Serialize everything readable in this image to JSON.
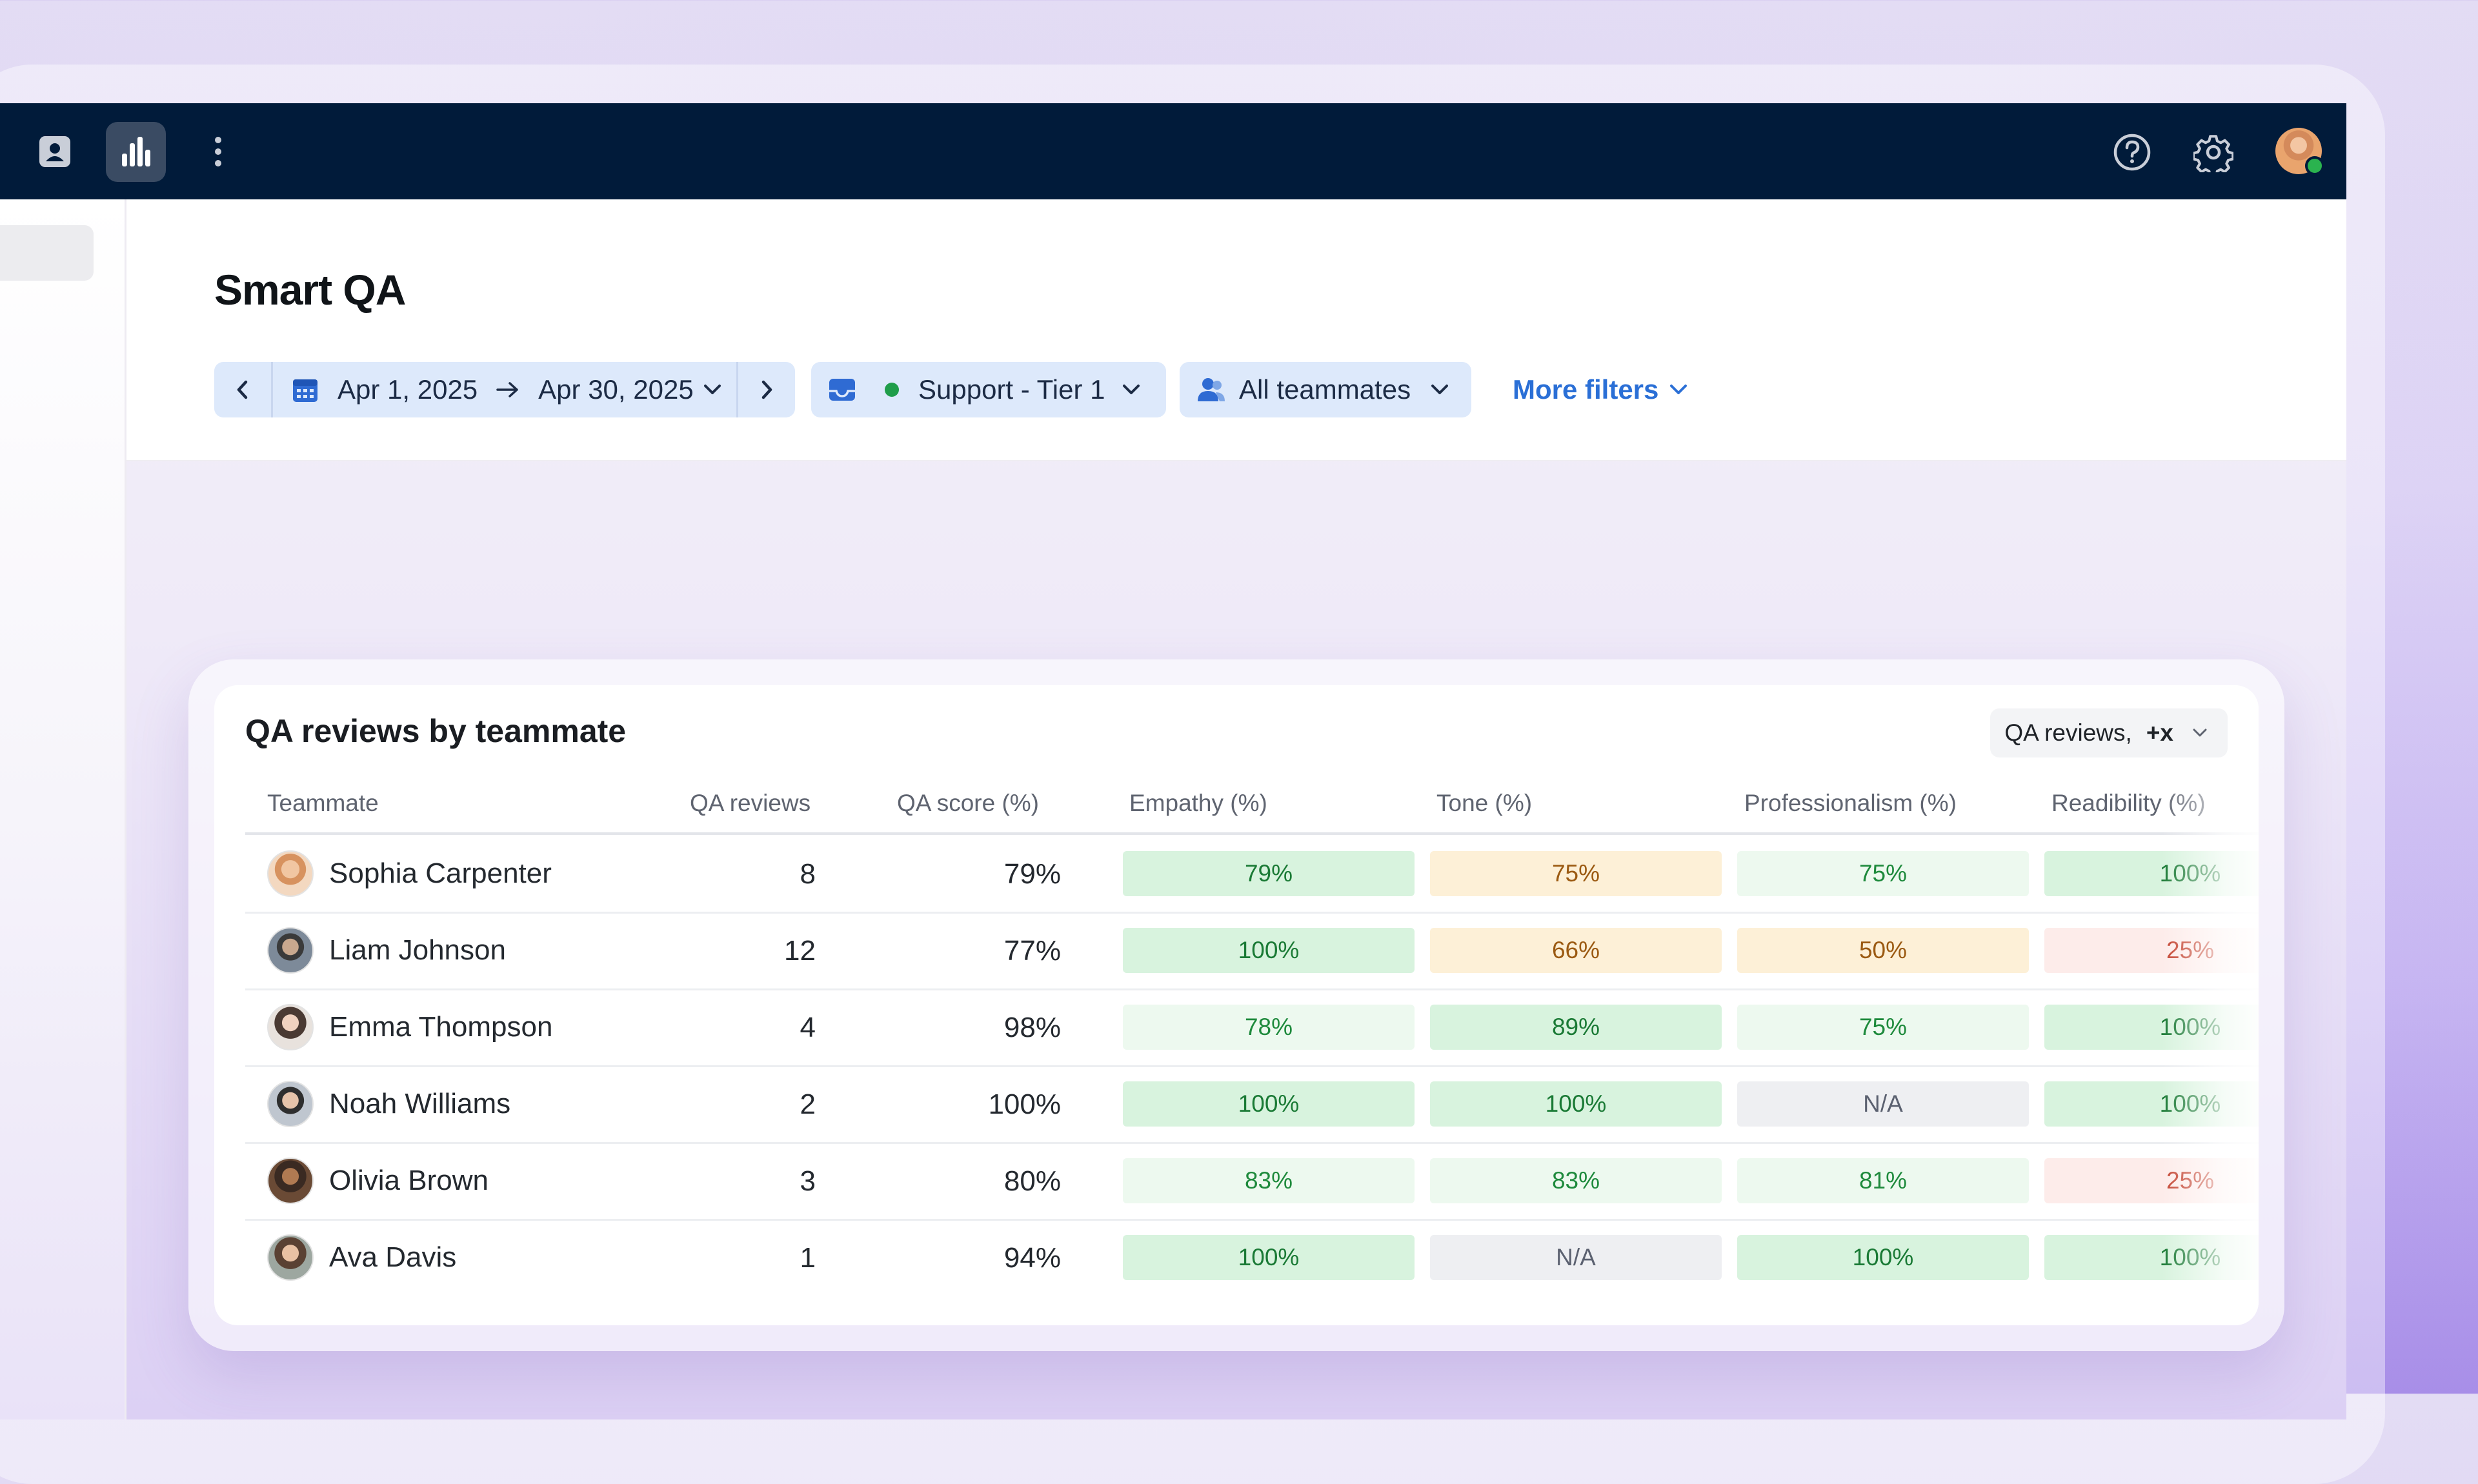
{
  "topbar": {
    "icons": [
      "contact-card-icon",
      "bar-chart-icon",
      "more-vertical-icon",
      "help-circle-icon",
      "gear-icon",
      "user-avatar"
    ],
    "background": "#011b3a"
  },
  "header": {
    "title": "Smart QA",
    "date_filter": {
      "start": "Apr 1, 2025",
      "end": "Apr 30, 2025"
    },
    "inbox_filter": {
      "label": "Support - Tier 1",
      "status_color": "#1f9d4a"
    },
    "teammates_filter": {
      "label": "All teammates"
    },
    "more_filters_label": "More filters"
  },
  "card": {
    "title": "QA reviews by teammate",
    "metric_select": {
      "label": "QA reviews,",
      "extra": "+x"
    },
    "columns": [
      "Teammate",
      "QA reviews",
      "QA score (%)",
      "Empathy (%)",
      "Tone (%)",
      "Professionalism (%)",
      "Readibility (%)"
    ],
    "rows": [
      {
        "name": "Sophia Carpenter",
        "reviews": "8",
        "score": "79%",
        "metrics": [
          {
            "v": "79%",
            "lvl": "high"
          },
          {
            "v": "75%",
            "lvl": "mid"
          },
          {
            "v": "75%",
            "lvl": "good"
          },
          {
            "v": "100%",
            "lvl": "high"
          }
        ]
      },
      {
        "name": "Liam Johnson",
        "reviews": "12",
        "score": "77%",
        "metrics": [
          {
            "v": "100%",
            "lvl": "high"
          },
          {
            "v": "66%",
            "lvl": "mid"
          },
          {
            "v": "50%",
            "lvl": "mid"
          },
          {
            "v": "25%",
            "lvl": "low"
          }
        ]
      },
      {
        "name": "Emma Thompson",
        "reviews": "4",
        "score": "98%",
        "metrics": [
          {
            "v": "78%",
            "lvl": "good"
          },
          {
            "v": "89%",
            "lvl": "high"
          },
          {
            "v": "75%",
            "lvl": "good"
          },
          {
            "v": "100%",
            "lvl": "high"
          }
        ]
      },
      {
        "name": "Noah Williams",
        "reviews": "2",
        "score": "100%",
        "metrics": [
          {
            "v": "100%",
            "lvl": "high"
          },
          {
            "v": "100%",
            "lvl": "high"
          },
          {
            "v": "N/A",
            "lvl": "na"
          },
          {
            "v": "100%",
            "lvl": "high"
          }
        ]
      },
      {
        "name": "Olivia Brown",
        "reviews": "3",
        "score": "80%",
        "metrics": [
          {
            "v": "83%",
            "lvl": "good"
          },
          {
            "v": "83%",
            "lvl": "good"
          },
          {
            "v": "81%",
            "lvl": "good"
          },
          {
            "v": "25%",
            "lvl": "low"
          }
        ]
      },
      {
        "name": "Ava Davis",
        "reviews": "1",
        "score": "94%",
        "metrics": [
          {
            "v": "100%",
            "lvl": "high"
          },
          {
            "v": "N/A",
            "lvl": "na"
          },
          {
            "v": "100%",
            "lvl": "high"
          },
          {
            "v": "100%",
            "lvl": "high"
          }
        ]
      }
    ]
  }
}
